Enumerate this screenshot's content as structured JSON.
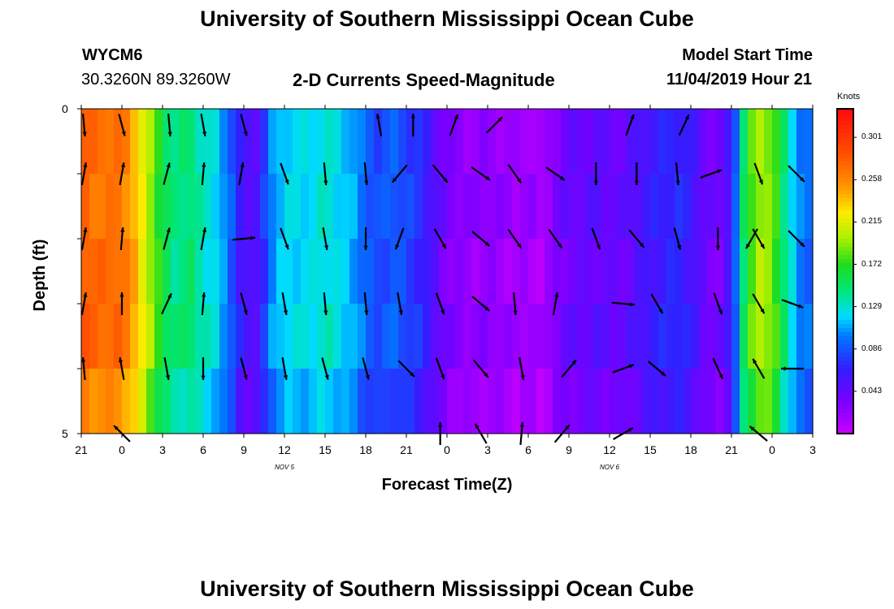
{
  "page": {
    "title_top": "University of Southern Mississippi Ocean Cube",
    "title_bottom": "University of Southern Mississippi Ocean Cube",
    "station": "WYCM6",
    "coords": "30.3260N 89.3260W",
    "plot_title": "2-D Currents Speed-Magnitude",
    "model_label": "Model Start Time",
    "model_time": "11/04/2019 Hour 21"
  },
  "chart_data": {
    "type": "heatmap",
    "title": "2-D Currents Speed-Magnitude",
    "xlabel": "Forecast Time(Z)",
    "ylabel": "Depth (ft)",
    "x_tick_labels": [
      "21",
      "0",
      "3",
      "6",
      "9",
      "12",
      "15",
      "18",
      "21",
      "0",
      "3",
      "6",
      "9",
      "12",
      "15",
      "18",
      "21",
      "0",
      "3"
    ],
    "day_labels": [
      {
        "label": "NOV 5",
        "tick_index": 5
      },
      {
        "label": "NOV 6",
        "tick_index": 13
      }
    ],
    "y_tick_labels": [
      "0",
      "5"
    ],
    "ylim": [
      0,
      5
    ],
    "x_range_hours": [
      0,
      54
    ],
    "colorbar": {
      "unit": "Knots",
      "ticks": [
        "0.301",
        "0.258",
        "0.215",
        "0.172",
        "0.129",
        "0.086",
        "0.043"
      ],
      "tick_values": [
        0.301,
        0.258,
        0.215,
        0.172,
        0.129,
        0.086,
        0.043
      ],
      "range": [
        0.0,
        0.33
      ]
    },
    "speed_profile_by_hour": [
      {
        "t": 0,
        "v": 0.28
      },
      {
        "t": 1,
        "v": 0.27
      },
      {
        "t": 2,
        "v": 0.27
      },
      {
        "t": 3,
        "v": 0.27
      },
      {
        "t": 4,
        "v": 0.24
      },
      {
        "t": 5,
        "v": 0.2
      },
      {
        "t": 6,
        "v": 0.16
      },
      {
        "t": 7,
        "v": 0.14
      },
      {
        "t": 8,
        "v": 0.15
      },
      {
        "t": 9,
        "v": 0.13
      },
      {
        "t": 10,
        "v": 0.12
      },
      {
        "t": 11,
        "v": 0.09
      },
      {
        "t": 12,
        "v": 0.05
      },
      {
        "t": 13,
        "v": 0.05
      },
      {
        "t": 14,
        "v": 0.1
      },
      {
        "t": 15,
        "v": 0.12
      },
      {
        "t": 16,
        "v": 0.12
      },
      {
        "t": 17,
        "v": 0.12
      },
      {
        "t": 18,
        "v": 0.13
      },
      {
        "t": 19,
        "v": 0.12
      },
      {
        "t": 20,
        "v": 0.11
      },
      {
        "t": 21,
        "v": 0.09
      },
      {
        "t": 22,
        "v": 0.08
      },
      {
        "t": 23,
        "v": 0.09
      },
      {
        "t": 24,
        "v": 0.08
      },
      {
        "t": 25,
        "v": 0.07
      },
      {
        "t": 26,
        "v": 0.05
      },
      {
        "t": 27,
        "v": 0.03
      },
      {
        "t": 28,
        "v": 0.025
      },
      {
        "t": 29,
        "v": 0.02
      },
      {
        "t": 30,
        "v": 0.025
      },
      {
        "t": 31,
        "v": 0.02
      },
      {
        "t": 32,
        "v": 0.015
      },
      {
        "t": 33,
        "v": 0.02
      },
      {
        "t": 34,
        "v": 0.01
      },
      {
        "t": 35,
        "v": 0.03
      },
      {
        "t": 36,
        "v": 0.04
      },
      {
        "t": 37,
        "v": 0.04
      },
      {
        "t": 38,
        "v": 0.045
      },
      {
        "t": 39,
        "v": 0.04
      },
      {
        "t": 40,
        "v": 0.04
      },
      {
        "t": 41,
        "v": 0.05
      },
      {
        "t": 42,
        "v": 0.06
      },
      {
        "t": 43,
        "v": 0.065
      },
      {
        "t": 44,
        "v": 0.07
      },
      {
        "t": 45,
        "v": 0.06
      },
      {
        "t": 46,
        "v": 0.04
      },
      {
        "t": 47,
        "v": 0.03
      },
      {
        "t": 48,
        "v": 0.06
      },
      {
        "t": 49,
        "v": 0.16
      },
      {
        "t": 50,
        "v": 0.2
      },
      {
        "t": 51,
        "v": 0.19
      },
      {
        "t": 52,
        "v": 0.14
      },
      {
        "t": 53,
        "v": 0.1
      },
      {
        "t": 54,
        "v": 0.09
      }
    ],
    "vectors": [
      {
        "t": 0.2,
        "d": 0.25,
        "dir": 175
      },
      {
        "t": 3,
        "d": 0.25,
        "dir": 165
      },
      {
        "t": 6.5,
        "d": 0.25,
        "dir": 175
      },
      {
        "t": 9,
        "d": 0.25,
        "dir": 170
      },
      {
        "t": 12,
        "d": 0.25,
        "dir": 165
      },
      {
        "t": 22,
        "d": 0.25,
        "dir": -10
      },
      {
        "t": 24.5,
        "d": 0.25,
        "dir": 0
      },
      {
        "t": 27.5,
        "d": 0.25,
        "dir": 20
      },
      {
        "t": 30.5,
        "d": 0.25,
        "dir": 45
      },
      {
        "t": 40.5,
        "d": 0.25,
        "dir": 20
      },
      {
        "t": 44.5,
        "d": 0.25,
        "dir": 25
      },
      {
        "t": 0.2,
        "d": 1.0,
        "dir": 10
      },
      {
        "t": 3,
        "d": 1.0,
        "dir": 10
      },
      {
        "t": 6.3,
        "d": 1.0,
        "dir": 15
      },
      {
        "t": 9,
        "d": 1.0,
        "dir": 5
      },
      {
        "t": 11.8,
        "d": 1.0,
        "dir": 10
      },
      {
        "t": 15,
        "d": 1.0,
        "dir": 160
      },
      {
        "t": 18,
        "d": 1.0,
        "dir": 175
      },
      {
        "t": 21,
        "d": 1.0,
        "dir": 175
      },
      {
        "t": 23.5,
        "d": 1.0,
        "dir": -140
      },
      {
        "t": 26.5,
        "d": 1.0,
        "dir": 140
      },
      {
        "t": 29.5,
        "d": 1.0,
        "dir": 125
      },
      {
        "t": 32,
        "d": 1.0,
        "dir": 145
      },
      {
        "t": 35,
        "d": 1.0,
        "dir": 125
      },
      {
        "t": 38,
        "d": 1.0,
        "dir": 180
      },
      {
        "t": 41,
        "d": 1.0,
        "dir": 180
      },
      {
        "t": 44,
        "d": 1.0,
        "dir": 175
      },
      {
        "t": 46.5,
        "d": 1.0,
        "dir": 70
      },
      {
        "t": 50,
        "d": 1.0,
        "dir": 160
      },
      {
        "t": 52.8,
        "d": 1.0,
        "dir": 135
      },
      {
        "t": 0.2,
        "d": 2.0,
        "dir": 10
      },
      {
        "t": 3,
        "d": 2.0,
        "dir": 5
      },
      {
        "t": 6.3,
        "d": 2.0,
        "dir": 15
      },
      {
        "t": 9,
        "d": 2.0,
        "dir": 10
      },
      {
        "t": 12,
        "d": 2.0,
        "dir": 85
      },
      {
        "t": 15,
        "d": 2.0,
        "dir": 160
      },
      {
        "t": 18,
        "d": 2.0,
        "dir": 170
      },
      {
        "t": 21,
        "d": 2.0,
        "dir": 180
      },
      {
        "t": 23.5,
        "d": 2.0,
        "dir": -160
      },
      {
        "t": 26.5,
        "d": 2.0,
        "dir": 150
      },
      {
        "t": 29.5,
        "d": 2.0,
        "dir": 130
      },
      {
        "t": 32,
        "d": 2.0,
        "dir": 145
      },
      {
        "t": 35,
        "d": 2.0,
        "dir": 145
      },
      {
        "t": 38,
        "d": 2.0,
        "dir": 160
      },
      {
        "t": 41,
        "d": 2.0,
        "dir": 140
      },
      {
        "t": 44,
        "d": 2.0,
        "dir": 165
      },
      {
        "t": 47,
        "d": 2.0,
        "dir": 180
      },
      {
        "t": 49.5,
        "d": 2.0,
        "dir": -150
      },
      {
        "t": 50,
        "d": 2.0,
        "dir": 150
      },
      {
        "t": 52.8,
        "d": 2.0,
        "dir": 135
      },
      {
        "t": 0.2,
        "d": 3.0,
        "dir": 10
      },
      {
        "t": 3,
        "d": 3.0,
        "dir": 0
      },
      {
        "t": 6.3,
        "d": 3.0,
        "dir": 25
      },
      {
        "t": 9,
        "d": 3.0,
        "dir": 5
      },
      {
        "t": 12,
        "d": 3.0,
        "dir": 165
      },
      {
        "t": 15,
        "d": 3.0,
        "dir": 170
      },
      {
        "t": 18,
        "d": 3.0,
        "dir": 175
      },
      {
        "t": 21,
        "d": 3.0,
        "dir": 175
      },
      {
        "t": 23.5,
        "d": 3.0,
        "dir": 170
      },
      {
        "t": 26.5,
        "d": 3.0,
        "dir": 160
      },
      {
        "t": 29.5,
        "d": 3.0,
        "dir": 130
      },
      {
        "t": 32,
        "d": 3.0,
        "dir": 175
      },
      {
        "t": 35,
        "d": 3.0,
        "dir": 10
      },
      {
        "t": 40,
        "d": 3.0,
        "dir": 95
      },
      {
        "t": 42.5,
        "d": 3.0,
        "dir": 150
      },
      {
        "t": 47,
        "d": 3.0,
        "dir": 160
      },
      {
        "t": 50,
        "d": 3.0,
        "dir": 150
      },
      {
        "t": 52.5,
        "d": 3.0,
        "dir": 110
      },
      {
        "t": 0.2,
        "d": 4.0,
        "dir": -5
      },
      {
        "t": 3,
        "d": 4.0,
        "dir": -10
      },
      {
        "t": 6.3,
        "d": 4.0,
        "dir": 170
      },
      {
        "t": 9,
        "d": 4.0,
        "dir": 180
      },
      {
        "t": 12,
        "d": 4.0,
        "dir": 165
      },
      {
        "t": 15,
        "d": 4.0,
        "dir": 170
      },
      {
        "t": 18,
        "d": 4.0,
        "dir": 165
      },
      {
        "t": 21,
        "d": 4.0,
        "dir": 165
      },
      {
        "t": 24,
        "d": 4.0,
        "dir": 135
      },
      {
        "t": 26.5,
        "d": 4.0,
        "dir": 160
      },
      {
        "t": 29.5,
        "d": 4.0,
        "dir": 140
      },
      {
        "t": 32.5,
        "d": 4.0,
        "dir": 170
      },
      {
        "t": 36,
        "d": 4.0,
        "dir": 40
      },
      {
        "t": 40,
        "d": 4.0,
        "dir": 70
      },
      {
        "t": 42.5,
        "d": 4.0,
        "dir": 130
      },
      {
        "t": 47,
        "d": 4.0,
        "dir": 155
      },
      {
        "t": 50,
        "d": 4.0,
        "dir": -30
      },
      {
        "t": 52.5,
        "d": 4.0,
        "dir": -90
      },
      {
        "t": 3,
        "d": 5.0,
        "dir": -45
      },
      {
        "t": 26.5,
        "d": 5.0,
        "dir": 0
      },
      {
        "t": 29.5,
        "d": 5.0,
        "dir": -30
      },
      {
        "t": 32.5,
        "d": 5.0,
        "dir": 5
      },
      {
        "t": 35.5,
        "d": 5.0,
        "dir": 40
      },
      {
        "t": 40,
        "d": 5.0,
        "dir": 60
      },
      {
        "t": 50,
        "d": 5.0,
        "dir": -50
      }
    ]
  }
}
